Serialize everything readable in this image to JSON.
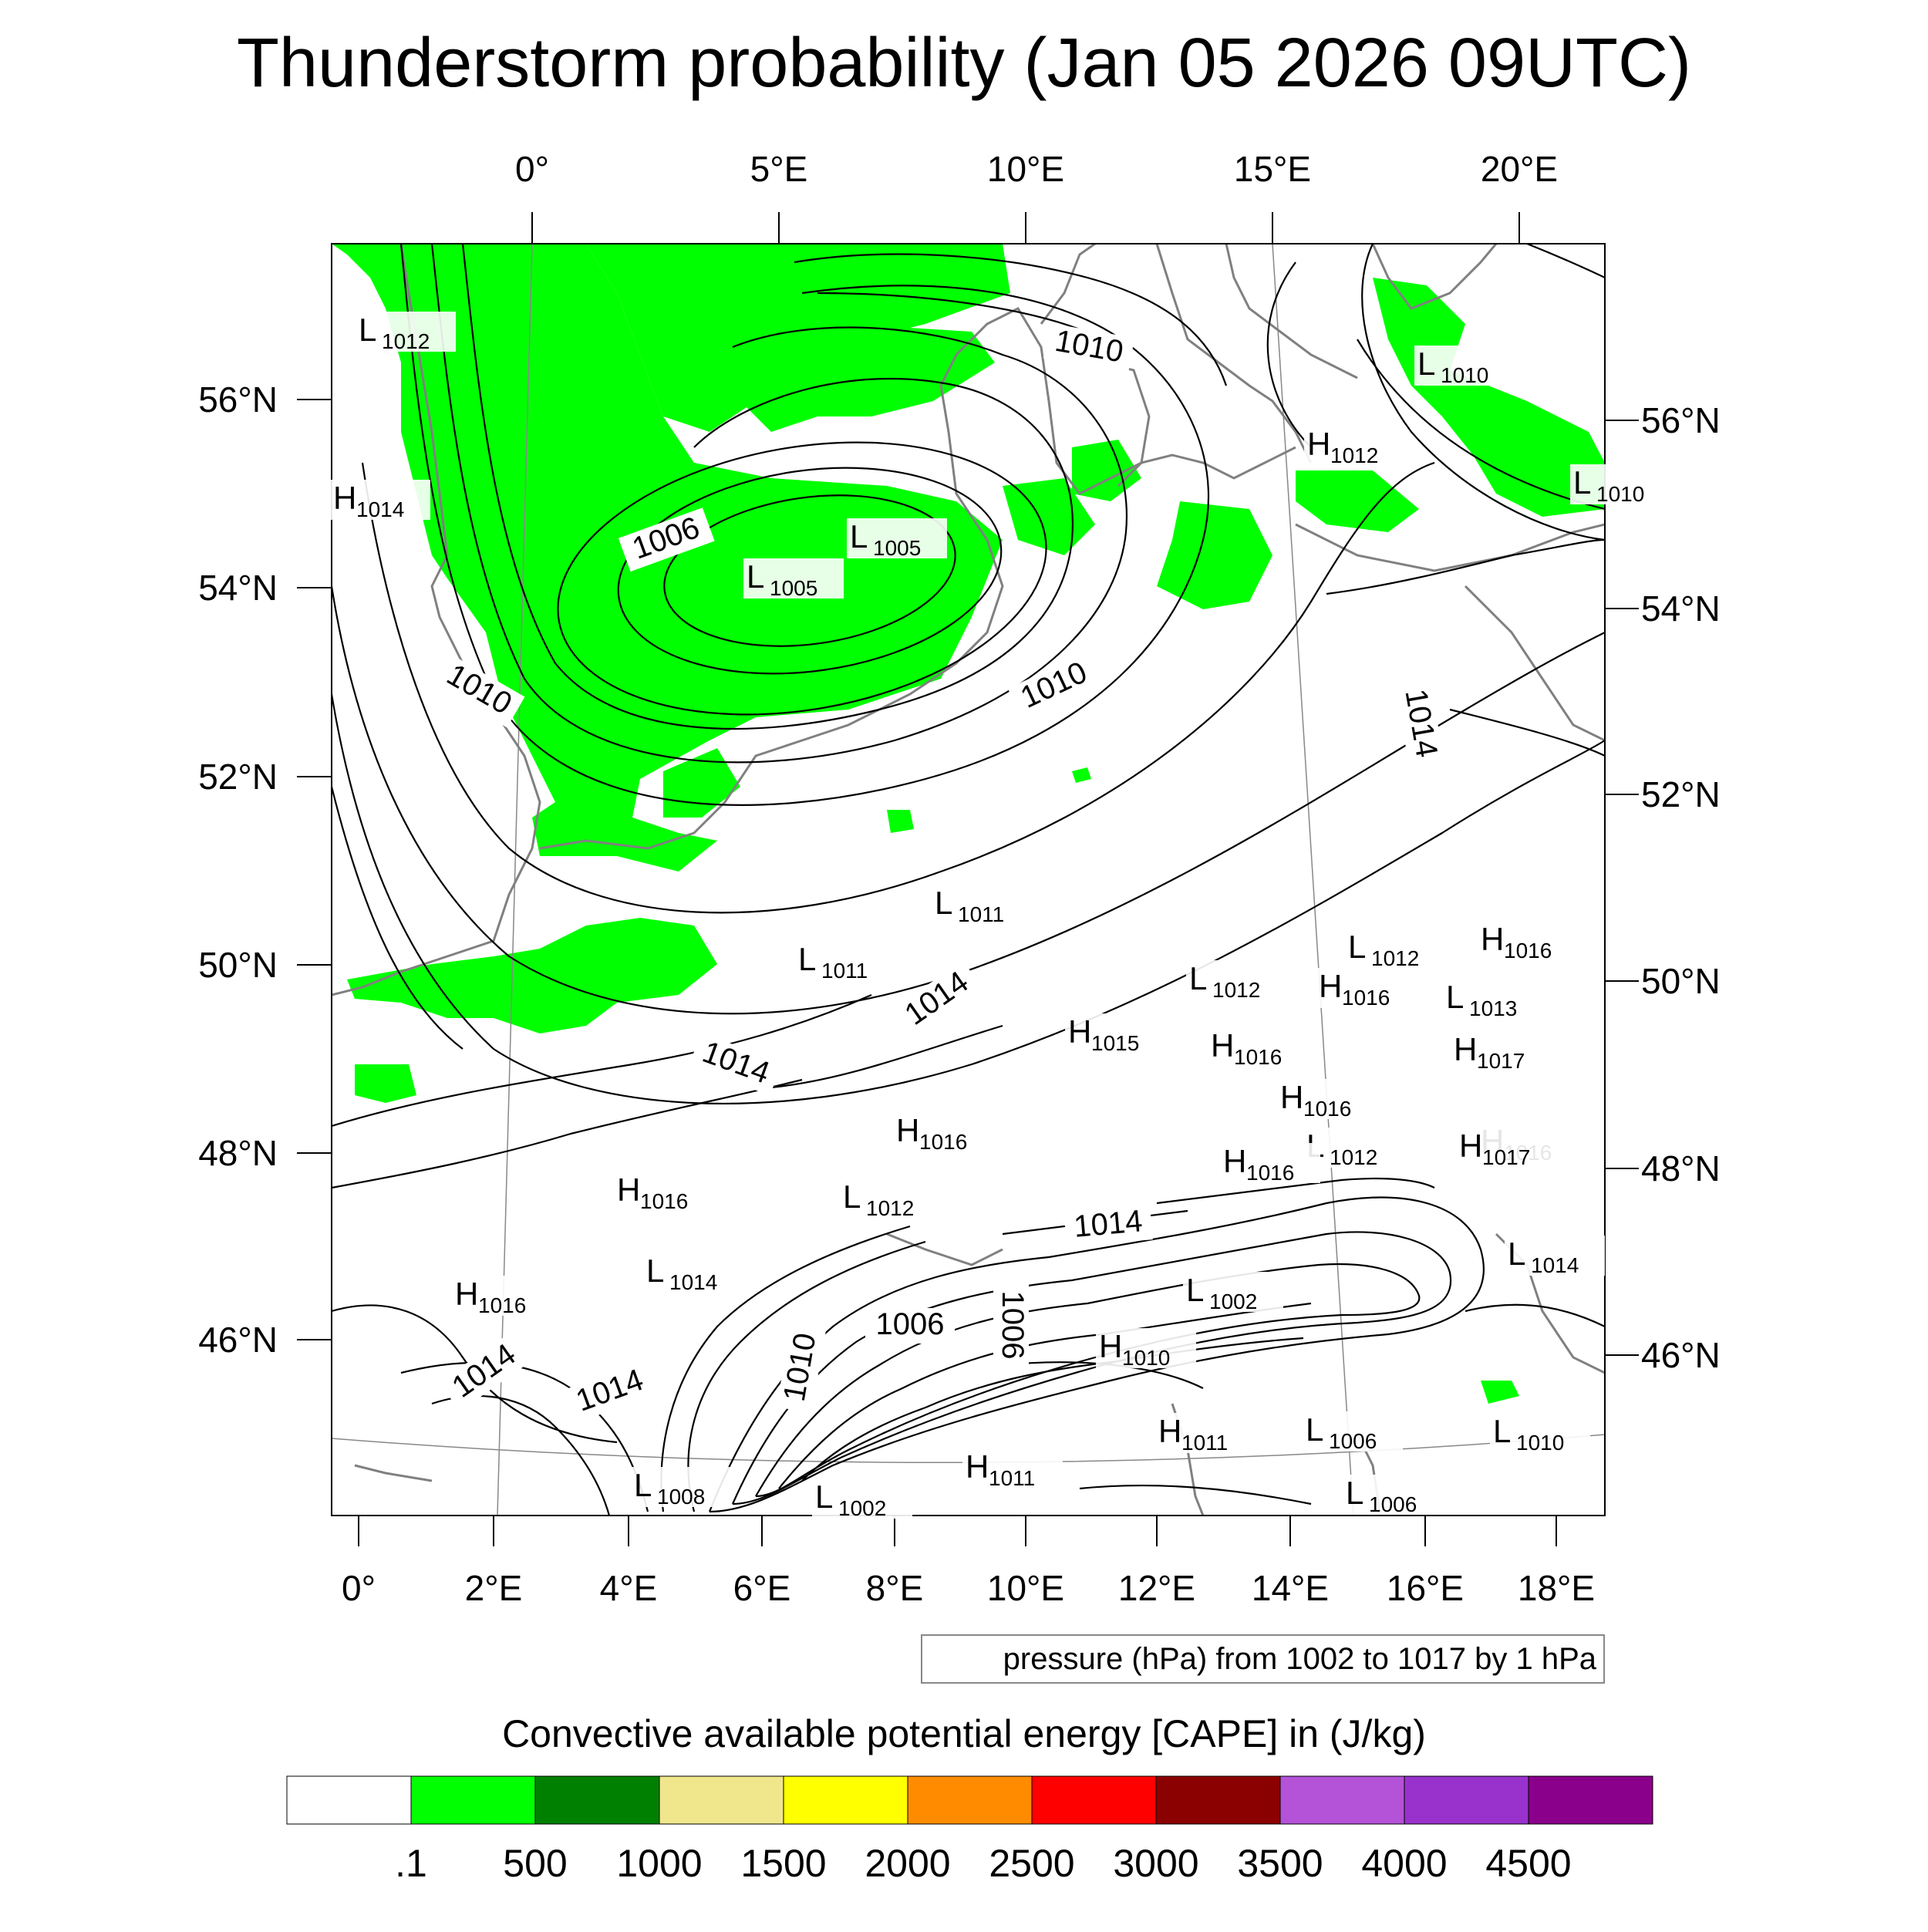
{
  "title": "Thunderstorm probability (Jan 05 2026 09UTC)",
  "top_lon_labels": [
    "0°",
    "5°E",
    "10°E",
    "15°E",
    "20°E"
  ],
  "bottom_lon_labels": [
    "0°",
    "2°E",
    "4°E",
    "6°E",
    "8°E",
    "10°E",
    "12°E",
    "14°E",
    "16°E",
    "18°E"
  ],
  "left_lat_labels": [
    "56°N",
    "54°N",
    "52°N",
    "50°N",
    "48°N",
    "46°N"
  ],
  "right_lat_labels": [
    "56°N",
    "54°N",
    "52°N",
    "50°N",
    "48°N",
    "46°N"
  ],
  "contour_labels": [
    "1006",
    "1010",
    "1010",
    "1010",
    "1014",
    "1014",
    "1014",
    "1014",
    "1014",
    "1014",
    "1006",
    "1006",
    "1010"
  ],
  "pressure_centers": [
    {
      "sym": "L",
      "val": "1012"
    },
    {
      "sym": "H",
      "val": "1014"
    },
    {
      "sym": "L",
      "val": "1005"
    },
    {
      "sym": "L",
      "val": "1005"
    },
    {
      "sym": "L",
      "val": "1010"
    },
    {
      "sym": "H",
      "val": "1012"
    },
    {
      "sym": "L",
      "val": "1010"
    },
    {
      "sym": "L",
      "val": "1011"
    },
    {
      "sym": "L",
      "val": "1011"
    },
    {
      "sym": "H",
      "val": "1015"
    },
    {
      "sym": "L",
      "val": "1012"
    },
    {
      "sym": "H",
      "val": "1016"
    },
    {
      "sym": "L",
      "val": "1012"
    },
    {
      "sym": "H",
      "val": "1016"
    },
    {
      "sym": "L",
      "val": "1013"
    },
    {
      "sym": "H",
      "val": "1016"
    },
    {
      "sym": "H",
      "val": "1017"
    },
    {
      "sym": "H",
      "val": "1016"
    },
    {
      "sym": "L",
      "val": "1012"
    },
    {
      "sym": "H",
      "val": "1016"
    },
    {
      "sym": "H",
      "val": "1017"
    },
    {
      "sym": "H",
      "val": "1016"
    },
    {
      "sym": "L",
      "val": "1012"
    },
    {
      "sym": "H",
      "val": "1016"
    },
    {
      "sym": "L",
      "val": "1014"
    },
    {
      "sym": "H",
      "val": "1016"
    },
    {
      "sym": "L",
      "val": "1014"
    },
    {
      "sym": "H",
      "val": "1016"
    },
    {
      "sym": "L",
      "val": "1002"
    },
    {
      "sym": "H",
      "val": "1010"
    },
    {
      "sym": "H",
      "val": "1011"
    },
    {
      "sym": "L",
      "val": "1006"
    },
    {
      "sym": "L",
      "val": "1010"
    },
    {
      "sym": "H",
      "val": "1011"
    },
    {
      "sym": "L",
      "val": "1008"
    },
    {
      "sym": "L",
      "val": "1002"
    },
    {
      "sym": "L",
      "val": "1006"
    }
  ],
  "contour_info": "pressure (hPa) from 1002 to 1017 by 1 hPa",
  "colorbar": {
    "title": "Convective available potential energy [CAPE] in (J/kg)",
    "colors": [
      "#ffffff",
      "#00ff00",
      "#008000",
      "#f0e68c",
      "#ffff00",
      "#ff8c00",
      "#ff0000",
      "#8b0000",
      "#b452d8",
      "#9932cc",
      "#8b008b"
    ],
    "labels": [
      ".1",
      "500",
      "1000",
      "1500",
      "2000",
      "2500",
      "3000",
      "3500",
      "4000",
      "4500"
    ]
  }
}
